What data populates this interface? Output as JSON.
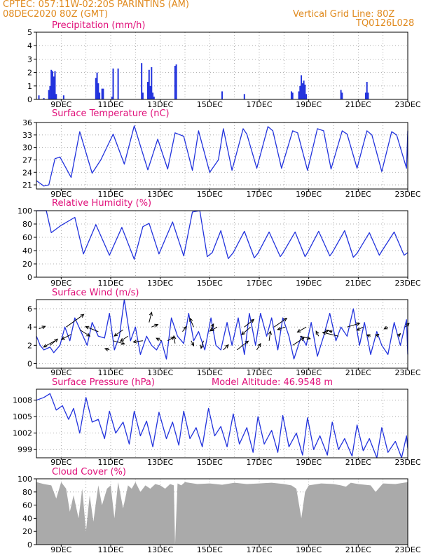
{
  "header": {
    "line1": "CPTEC:  057:11W-02:20S  PARINTINS (AM)",
    "line2": "08DEC2020 80Z (GMT)",
    "grid_note": "Vertical Grid Line: 80Z",
    "run_id": "TQ0126L028"
  },
  "colors": {
    "header": "#e08a1e",
    "title": "#e0107a",
    "series": "#2233dd",
    "cloud": "#aaaaaa",
    "grid": "#999999"
  },
  "chart_data": [
    {
      "type": "bar",
      "title": "Precipitation (mm/h)",
      "ylim": [
        0,
        5
      ],
      "yticks": [
        0,
        1,
        2,
        3,
        4,
        5
      ],
      "xticks": [
        "9DEC",
        "11DEC",
        "13DEC",
        "15DEC",
        "17DEC",
        "19DEC",
        "21DEC",
        "23DEC"
      ],
      "x": [
        8.1,
        8.3,
        8.5,
        8.55,
        8.6,
        8.65,
        8.7,
        8.75,
        8.8,
        9.1,
        10.4,
        10.45,
        10.5,
        10.55,
        10.65,
        10.7,
        11.05,
        11.1,
        11.3,
        12.25,
        12.3,
        12.5,
        12.55,
        12.6,
        12.65,
        12.7,
        12.75,
        13.6,
        13.65,
        15.5,
        16.4,
        18.3,
        18.35,
        18.6,
        18.65,
        18.7,
        18.75,
        18.8,
        18.85,
        18.9,
        20.3,
        20.35,
        21.3,
        21.35,
        21.4
      ],
      "values": [
        0.3,
        0.1,
        0.7,
        1.0,
        2.2,
        2.1,
        1.7,
        2.1,
        0.4,
        0.3,
        1.6,
        2.0,
        1.2,
        0.5,
        0.8,
        0.8,
        0.2,
        2.3,
        2.3,
        2.7,
        0.5,
        1.3,
        2.2,
        1.0,
        2.4,
        0.5,
        0.2,
        2.5,
        2.6,
        0.6,
        0.4,
        0.6,
        0.5,
        0.6,
        1.0,
        1.8,
        1.2,
        1.4,
        1.1,
        0.4,
        0.7,
        0.5,
        0.5,
        1.3,
        0.5
      ]
    },
    {
      "type": "line",
      "title": "Surface Temperature (nC)",
      "ylim": [
        20,
        36
      ],
      "yticks": [
        21,
        24,
        27,
        30,
        33,
        36
      ],
      "xticks": [
        "9DEC",
        "11DEC",
        "13DEC",
        "15DEC",
        "17DEC",
        "19DEC",
        "21DEC",
        "23DEC"
      ],
      "x": [
        8.0,
        8.3,
        8.5,
        8.75,
        8.95,
        9.4,
        9.75,
        10.25,
        10.6,
        11.1,
        11.55,
        11.95,
        12.5,
        12.9,
        13.3,
        13.6,
        13.95,
        14.3,
        14.55,
        15.0,
        15.35,
        15.55,
        15.9,
        16.35,
        16.5,
        16.9,
        17.35,
        17.55,
        17.9,
        18.35,
        18.55,
        18.95,
        19.35,
        19.6,
        19.9,
        20.35,
        20.55,
        20.95,
        21.35,
        21.55,
        21.95,
        22.35,
        22.55,
        22.95,
        23.0
      ],
      "values": [
        22.0,
        20.7,
        21.0,
        27.3,
        27.7,
        22.8,
        33.8,
        23.8,
        27.0,
        33.2,
        26.0,
        35.2,
        24.6,
        32.0,
        24.8,
        33.5,
        32.7,
        24.5,
        34.0,
        24.0,
        27.0,
        34.5,
        24.5,
        34.5,
        33.2,
        25.0,
        35.0,
        34.0,
        25.0,
        34.0,
        33.5,
        24.5,
        34.5,
        34.0,
        24.8,
        34.0,
        33.2,
        25.0,
        34.0,
        33.0,
        24.2,
        33.8,
        33.0,
        25.0,
        34.0
      ]
    },
    {
      "type": "line",
      "title": "Relative Humidity (%)",
      "ylim": [
        0,
        100
      ],
      "yticks": [
        0,
        20,
        40,
        60,
        80,
        100
      ],
      "xticks": [
        "9DEC",
        "11DEC",
        "13DEC",
        "15DEC",
        "17DEC",
        "19DEC",
        "21DEC",
        "23DEC"
      ],
      "x": [
        8.0,
        8.4,
        8.6,
        9.0,
        9.55,
        9.9,
        10.4,
        10.95,
        11.45,
        11.95,
        12.3,
        12.55,
        12.95,
        13.5,
        13.95,
        14.3,
        14.6,
        14.9,
        15.1,
        15.45,
        15.75,
        15.95,
        16.4,
        16.8,
        16.95,
        17.4,
        17.85,
        17.95,
        18.45,
        18.85,
        18.95,
        19.4,
        19.85,
        19.95,
        20.45,
        20.8,
        20.95,
        21.45,
        21.85,
        21.95,
        22.45,
        22.85,
        23.0
      ],
      "values": [
        100,
        100,
        67,
        78,
        90,
        35,
        79,
        33,
        75,
        27,
        76,
        81,
        35,
        83,
        32,
        98,
        100,
        31,
        37,
        70,
        28,
        37,
        69,
        29,
        36,
        68,
        31,
        36,
        68,
        31,
        37,
        69,
        32,
        37,
        70,
        30,
        36,
        67,
        33,
        39,
        68,
        33,
        37
      ]
    },
    {
      "type": "line",
      "title": "Surface Wind (m/s)",
      "ylim": [
        -0.5,
        7
      ],
      "yticks": [
        0,
        2,
        4,
        6
      ],
      "xticks": [
        "9DEC",
        "11DEC",
        "13DEC",
        "15DEC",
        "17DEC",
        "19DEC",
        "21DEC",
        "23DEC"
      ],
      "x": [
        8.0,
        8.15,
        8.3,
        8.55,
        8.7,
        8.95,
        9.15,
        9.35,
        9.55,
        9.8,
        10.05,
        10.25,
        10.5,
        10.75,
        10.95,
        11.15,
        11.35,
        11.55,
        11.8,
        12.0,
        12.2,
        12.45,
        12.65,
        12.85,
        13.05,
        13.25,
        13.45,
        13.7,
        13.95,
        14.15,
        14.35,
        14.55,
        14.8,
        15.05,
        15.25,
        15.45,
        15.7,
        15.9,
        16.15,
        16.4,
        16.6,
        16.85,
        17.05,
        17.3,
        17.5,
        17.75,
        17.95,
        18.2,
        18.4,
        18.7,
        18.9,
        19.1,
        19.35,
        19.6,
        19.85,
        20.1,
        20.3,
        20.55,
        20.8,
        21.05,
        21.25,
        21.5,
        21.75,
        21.95,
        22.2,
        22.45,
        22.7,
        22.95,
        23.0
      ],
      "values": [
        3.0,
        2.0,
        1.5,
        1.8,
        1.2,
        2.0,
        4.0,
        2.5,
        5.0,
        3.5,
        2.0,
        4.5,
        3.0,
        2.8,
        5.5,
        1.5,
        3.0,
        7.0,
        2.5,
        4.0,
        1.0,
        3.0,
        2.0,
        1.5,
        2.5,
        0.5,
        5.0,
        3.0,
        2.2,
        5.5,
        2.5,
        3.5,
        1.5,
        5.0,
        2.0,
        1.5,
        4.5,
        2.0,
        5.0,
        1.0,
        5.5,
        2.0,
        5.5,
        3.0,
        5.0,
        1.5,
        5.0,
        3.0,
        0.5,
        3.0,
        2.0,
        4.5,
        0.8,
        3.0,
        5.5,
        2.5,
        4.0,
        3.0,
        6.0,
        2.0,
        4.5,
        1.0,
        3.5,
        2.0,
        1.0,
        4.5,
        2.0,
        4.8,
        1.0
      ]
    },
    {
      "type": "line",
      "title": "Surface Pressure (hPa)",
      "annotation": "Model Altitude: 46.9548  m",
      "ylim": [
        997.5,
        1010
      ],
      "yticks": [
        999,
        1002,
        1005,
        1008
      ],
      "xticks": [
        "9DEC",
        "11DEC",
        "13DEC",
        "15DEC",
        "17DEC",
        "19DEC",
        "21DEC",
        "23DEC"
      ],
      "x": [
        8.0,
        8.3,
        8.55,
        8.8,
        9.05,
        9.3,
        9.5,
        9.75,
        10.0,
        10.25,
        10.5,
        10.75,
        10.95,
        11.2,
        11.5,
        11.75,
        11.95,
        12.2,
        12.45,
        12.7,
        12.95,
        13.25,
        13.5,
        13.75,
        13.95,
        14.2,
        14.45,
        14.7,
        14.95,
        15.2,
        15.45,
        15.7,
        15.95,
        16.2,
        16.5,
        16.75,
        16.95,
        17.2,
        17.5,
        17.75,
        17.95,
        18.2,
        18.5,
        18.75,
        18.95,
        19.2,
        19.45,
        19.75,
        19.95,
        20.2,
        20.45,
        20.75,
        20.95,
        21.2,
        21.45,
        21.75,
        21.95,
        22.2,
        22.5,
        22.75,
        22.95,
        23.0
      ],
      "values": [
        1008.0,
        1008.5,
        1009.2,
        1006.2,
        1007.0,
        1004.5,
        1006.5,
        1002.0,
        1008.5,
        1004.0,
        1004.5,
        1001.0,
        1006.0,
        1002.0,
        1004.0,
        1000.0,
        1006.0,
        1001.5,
        1004.2,
        999.5,
        1005.8,
        1001.0,
        1004.0,
        999.8,
        1006.0,
        1001.0,
        1003.0,
        999.5,
        1006.5,
        1001.5,
        1003.2,
        999.5,
        1005.5,
        1000.0,
        1003.0,
        998.5,
        1005.0,
        1000.0,
        1002.5,
        998.5,
        1005.2,
        999.5,
        1002.0,
        998.0,
        1004.8,
        999.0,
        1001.5,
        998.0,
        1004.0,
        999.0,
        1001.0,
        997.8,
        1003.5,
        998.8,
        1001.0,
        997.5,
        1003.0,
        998.5,
        1000.5,
        997.5,
        1001.5,
        999.2
      ]
    },
    {
      "type": "area",
      "title": "Cloud Cover (%)",
      "ylim": [
        0,
        100
      ],
      "yticks": [
        0,
        20,
        40,
        60,
        80,
        100
      ],
      "xticks": [
        "9DEC",
        "11DEC",
        "13DEC",
        "15DEC",
        "17DEC",
        "19DEC",
        "21DEC",
        "23DEC"
      ],
      "x": [
        8.0,
        8.3,
        8.6,
        8.8,
        9.0,
        9.2,
        9.35,
        9.5,
        9.7,
        9.85,
        10.0,
        10.15,
        10.3,
        10.5,
        10.65,
        10.85,
        11.0,
        11.15,
        11.3,
        11.5,
        11.7,
        11.85,
        12.0,
        12.2,
        12.4,
        12.6,
        12.8,
        13.0,
        13.2,
        13.4,
        13.55,
        13.6,
        13.7,
        13.85,
        14.0,
        14.5,
        15.0,
        15.5,
        16.0,
        16.5,
        17.0,
        17.5,
        18.0,
        18.3,
        18.5,
        18.7,
        18.85,
        19.0,
        19.5,
        20.0,
        20.3,
        20.5,
        20.7,
        21.0,
        21.5,
        21.7,
        22.0,
        22.5,
        23.0
      ],
      "values": [
        95,
        92,
        90,
        70,
        95,
        85,
        50,
        75,
        40,
        85,
        20,
        75,
        35,
        90,
        60,
        85,
        90,
        40,
        95,
        55,
        90,
        85,
        95,
        80,
        90,
        85,
        92,
        90,
        85,
        92,
        90,
        0,
        93,
        90,
        95,
        92,
        93,
        91,
        94,
        92,
        93,
        94,
        92,
        90,
        85,
        40,
        80,
        90,
        93,
        92,
        90,
        88,
        94,
        92,
        90,
        80,
        93,
        92,
        95
      ]
    },
    {
      "type": "quiver",
      "title": "Surface wind vectors",
      "x": [
        8.1,
        8.55,
        8.75,
        9.2,
        9.4,
        9.75,
        10.5,
        10.95,
        11.1,
        11.5,
        11.7,
        12.3,
        12.55,
        12.65,
        13.05,
        13.3,
        13.6,
        13.9,
        14.25,
        14.35,
        14.75,
        15.0,
        15.3,
        15.55,
        16.1,
        16.4,
        16.65,
        16.9,
        17.4,
        17.6,
        18.05,
        18.35,
        18.65,
        18.9,
        19.4,
        19.65,
        19.95,
        20.2,
        20.55,
        21.2,
        21.5,
        21.7,
        22.2,
        22.6,
        22.9
      ],
      "y": [
        3.8,
        2.0,
        2.5,
        4.0,
        3.2,
        3.7,
        3.5,
        1.5,
        2.5,
        3.7,
        3.0,
        2.5,
        4.5,
        4.0,
        2.5,
        2.5,
        2.2,
        3.5,
        2.5,
        4.0,
        2.5,
        3.5,
        4.0,
        1.5,
        1.5,
        4.0,
        4.0,
        1.5,
        2.5,
        4.0,
        4.0,
        2.0,
        3.0,
        4.0,
        3.0,
        3.5,
        3.5,
        3.0,
        4.0,
        4.0,
        3.0,
        3.0,
        4.0,
        3.0,
        4.0
      ],
      "u": [
        1.0,
        1.2,
        -1.8,
        2.8,
        -1.5,
        1.6,
        -2.0,
        -0.7,
        1.8,
        -1.4,
        -1.2,
        -1.5,
        0.4,
        1.0,
        -0.8,
        1.0,
        -0.2,
        0.6,
        0.4,
        -0.6,
        -0.4,
        0.6,
        -1.0,
        0.8,
        1.8,
        1.5,
        -1.4,
        0.6,
        0.2,
        2.0,
        -1.2,
        1.8,
        1.6,
        -1.4,
        -0.4,
        0.6,
        -0.5,
        -2.5,
        2.0,
        -1.0,
        -0.6,
        0.5,
        -0.6,
        0.4,
        0.6
      ],
      "v": [
        0.4,
        1.0,
        -1.0,
        2.0,
        -0.8,
        -1.0,
        0.8,
        0.2,
        -0.5,
        -1.0,
        -0.8,
        -0.2,
        1.6,
        0.4,
        0.4,
        0.6,
        1.2,
        0.8,
        -0.8,
        1.4,
        -1.2,
        1.2,
        -0.6,
        0.8,
        1.4,
        1.2,
        -1.2,
        1.0,
        1.5,
        1.4,
        -0.4,
        1.2,
        -0.4,
        -0.8,
        0.8,
        0.2,
        0.1,
        0.6,
        0.6,
        -0.5,
        0.2,
        0.3,
        -0.3,
        0.4,
        0.6
      ]
    }
  ]
}
